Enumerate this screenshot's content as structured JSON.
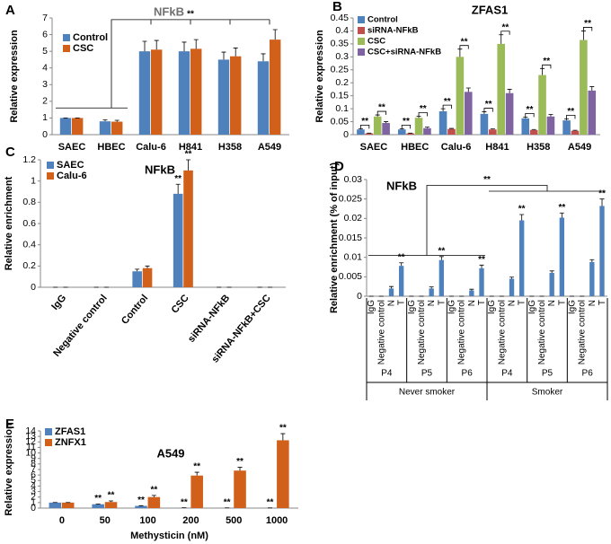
{
  "chart_data": [
    {
      "type": "bar",
      "panel": "A",
      "title": "NFkB",
      "ylabel": "Relative expression",
      "categories": [
        "SAEC",
        "HBEC",
        "Calu-6",
        "H841",
        "H358",
        "A549"
      ],
      "series": [
        {
          "name": "Control",
          "color": "#4f81bd",
          "values": [
            1,
            0.8,
            5.0,
            5.0,
            4.5,
            4.4
          ],
          "errors": [
            0,
            0.08,
            0.6,
            0.55,
            0.45,
            0.45
          ]
        },
        {
          "name": "CSC",
          "color": "#d0601a",
          "values": [
            1,
            0.78,
            5.1,
            5.15,
            4.7,
            5.7
          ],
          "errors": [
            0,
            0.08,
            0.55,
            0.55,
            0.5,
            0.6
          ]
        }
      ],
      "ylim": [
        0,
        7
      ],
      "yticks": [
        0,
        1,
        2,
        3,
        4,
        5,
        6,
        7
      ],
      "bracket_label": "**"
    },
    {
      "type": "bar",
      "panel": "B",
      "title": "ZFAS1",
      "ylabel": "Relative expression",
      "categories": [
        "SAEC",
        "HBEC",
        "Calu-6",
        "H841",
        "H358",
        "A549"
      ],
      "series": [
        {
          "name": "Control",
          "color": "#4f81bd",
          "values": [
            0.02,
            0.02,
            0.09,
            0.08,
            0.063,
            0.055
          ],
          "errors": [
            0.003,
            0.003,
            0.01,
            0.008,
            0.005,
            0.006
          ]
        },
        {
          "name": "siRNA-NFkB",
          "color": "#c0504d",
          "values": [
            0.005,
            0.005,
            0.022,
            0.02,
            0.018,
            0.015
          ],
          "errors": [
            0.001,
            0.001,
            0.002,
            0.002,
            0.002,
            0.002
          ],
          "sig": [
            "**",
            "**",
            "**",
            "**",
            "**",
            "**"
          ]
        },
        {
          "name": "CSC",
          "color": "#9bbb59",
          "values": [
            0.07,
            0.065,
            0.3,
            0.35,
            0.23,
            0.365
          ],
          "errors": [
            0.006,
            0.006,
            0.03,
            0.035,
            0.025,
            0.035
          ]
        },
        {
          "name": "CSC+siRNA-NFkB",
          "color": "#8064a2",
          "values": [
            0.045,
            0.025,
            0.165,
            0.16,
            0.07,
            0.17
          ],
          "errors": [
            0.005,
            0.004,
            0.015,
            0.015,
            0.008,
            0.015
          ],
          "sig": [
            "**",
            "**",
            "**",
            "**",
            "**",
            "**"
          ]
        }
      ],
      "ylim": [
        0,
        0.45
      ],
      "yticks": [
        0,
        0.05,
        0.1,
        0.15,
        0.2,
        0.25,
        0.3,
        0.35,
        0.4,
        0.45
      ]
    },
    {
      "type": "bar",
      "panel": "C",
      "title": "NFkB",
      "ylabel": "Relative enrichment",
      "categories": [
        "IgG",
        "Negative control",
        "Control",
        "CSC",
        "siRNA-NFkB",
        "siRNA-NFkB+CSC"
      ],
      "series": [
        {
          "name": "SAEC",
          "color": "#4f81bd",
          "values": [
            0,
            0,
            0.15,
            0.88,
            0,
            0
          ],
          "errors": [
            0,
            0,
            0.02,
            0.09,
            0,
            0
          ],
          "sig": [
            null,
            null,
            null,
            "**",
            null,
            null
          ]
        },
        {
          "name": "Calu-6",
          "color": "#d0601a",
          "values": [
            0,
            0,
            0.18,
            1.1,
            0,
            0
          ],
          "errors": [
            0,
            0,
            0.02,
            0.1,
            0,
            0
          ],
          "sig": [
            null,
            null,
            null,
            "**",
            null,
            null
          ]
        }
      ],
      "ylim": [
        0,
        1.2
      ],
      "yticks": [
        0,
        0.2,
        0.4,
        0.6,
        0.8,
        1,
        1.2
      ]
    },
    {
      "type": "bar",
      "panel": "D",
      "title": "NFkB",
      "ylabel": "Relative enrichment (% of input)",
      "categories": [
        "IgG",
        "Negative control",
        "N",
        "T",
        "IgG",
        "Negative control",
        "N",
        "T",
        "IgG",
        "Negative control",
        "N",
        "T",
        "IgG",
        "Negative control",
        "N",
        "T",
        "IgG",
        "Negative control",
        "N",
        "T",
        "IgG",
        "Negative control",
        "N",
        "T"
      ],
      "groups": [
        "P4",
        "P5",
        "P6",
        "P4",
        "P5",
        "P6"
      ],
      "supergroups": [
        "Never smoker",
        "Smoker"
      ],
      "series": [
        {
          "color": "#4f81bd",
          "values": [
            0,
            0,
            0.002,
            0.0078,
            0,
            0,
            0.002,
            0.0093,
            0,
            0,
            0.0015,
            0.0072,
            0,
            0,
            0.0045,
            0.0195,
            0,
            0,
            0.006,
            0.0202,
            0,
            0,
            0.0088,
            0.0232
          ],
          "errors": [
            0,
            0,
            0.0005,
            0.0008,
            0,
            0,
            0.0004,
            0.0009,
            0,
            0,
            0.0003,
            0.0008,
            0,
            0,
            0.0004,
            0.0015,
            0,
            0,
            0.0005,
            0.0012,
            0,
            0,
            0.0006,
            0.0018
          ],
          "sig": [
            null,
            null,
            null,
            "**",
            null,
            null,
            null,
            "**",
            null,
            null,
            null,
            "**",
            null,
            null,
            null,
            "**",
            null,
            null,
            null,
            "**",
            null,
            null,
            null,
            "**"
          ]
        }
      ],
      "ylim": [
        0,
        0.03
      ],
      "yticks": [
        0,
        0.005,
        0.01,
        0.015,
        0.02,
        0.025,
        0.03
      ],
      "bracket_label": "**"
    },
    {
      "type": "bar",
      "panel": "E",
      "title": "A549",
      "ylabel": "Relative expression",
      "xlabel": "Methysticin (nM)",
      "categories": [
        "0",
        "50",
        "100",
        "200",
        "500",
        "1000"
      ],
      "series": [
        {
          "name": "ZFAS1",
          "color": "#4f81bd",
          "values": [
            1,
            0.7,
            0.4,
            0.05,
            0.03,
            0.02
          ],
          "errors": [
            0.02,
            0.05,
            0.04,
            0.01,
            0.01,
            0.01
          ],
          "sig": [
            null,
            "**",
            "**",
            "**",
            "**",
            "**"
          ]
        },
        {
          "name": "ZNFX1",
          "color": "#d0601a",
          "values": [
            1,
            1.1,
            2.0,
            5.9,
            6.8,
            12.3
          ],
          "errors": [
            0.02,
            0.2,
            0.3,
            0.6,
            0.6,
            1.2
          ],
          "sig": [
            null,
            "**",
            "**",
            "**",
            "**",
            "**"
          ]
        }
      ],
      "ylim": [
        0,
        14
      ],
      "yticks": [
        0,
        1,
        2,
        3,
        4,
        5,
        6,
        7,
        8,
        9,
        10,
        11,
        12,
        13,
        14
      ]
    }
  ]
}
